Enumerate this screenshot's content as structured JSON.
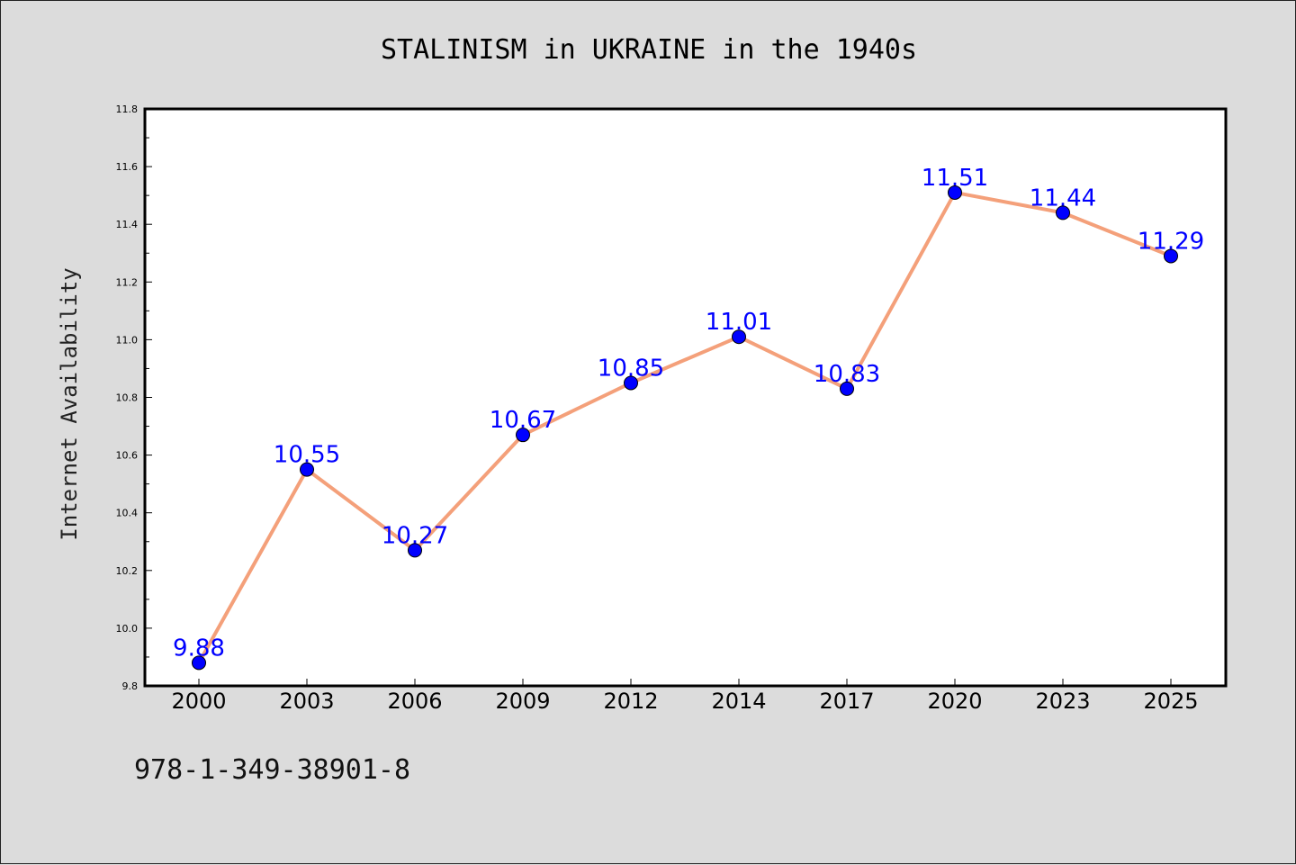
{
  "page": {
    "footer_code": "978-1-349-38901-8"
  },
  "chart_data": {
    "type": "line",
    "title": "STALINISM in UKRAINE in the 1940s",
    "xlabel": "",
    "ylabel": "Internet Availability",
    "categories": [
      "2000",
      "2003",
      "2006",
      "2009",
      "2012",
      "2014",
      "2017",
      "2020",
      "2023",
      "2025"
    ],
    "series": [
      {
        "values": [
          9.88,
          10.55,
          10.27,
          10.67,
          10.85,
          11.01,
          10.83,
          11.51,
          11.44,
          11.29
        ],
        "data_labels": [
          "9.88",
          "10.55",
          "10.27",
          "10.67",
          "10.85",
          "11.01",
          "10.83",
          "11.51",
          "11.44",
          "11.29"
        ],
        "line_color": "#f4a07a",
        "marker_color": "#0000ff"
      }
    ],
    "ylim": [
      9.8,
      11.8
    ],
    "yticks": [
      "9.8",
      "10.0",
      "10.2",
      "10.4",
      "10.6",
      "10.8",
      "11.0",
      "11.2",
      "11.4",
      "11.6",
      "11.8"
    ],
    "grid": false,
    "plot_background": "#ffffff",
    "page_background": "#dcdcdc"
  }
}
